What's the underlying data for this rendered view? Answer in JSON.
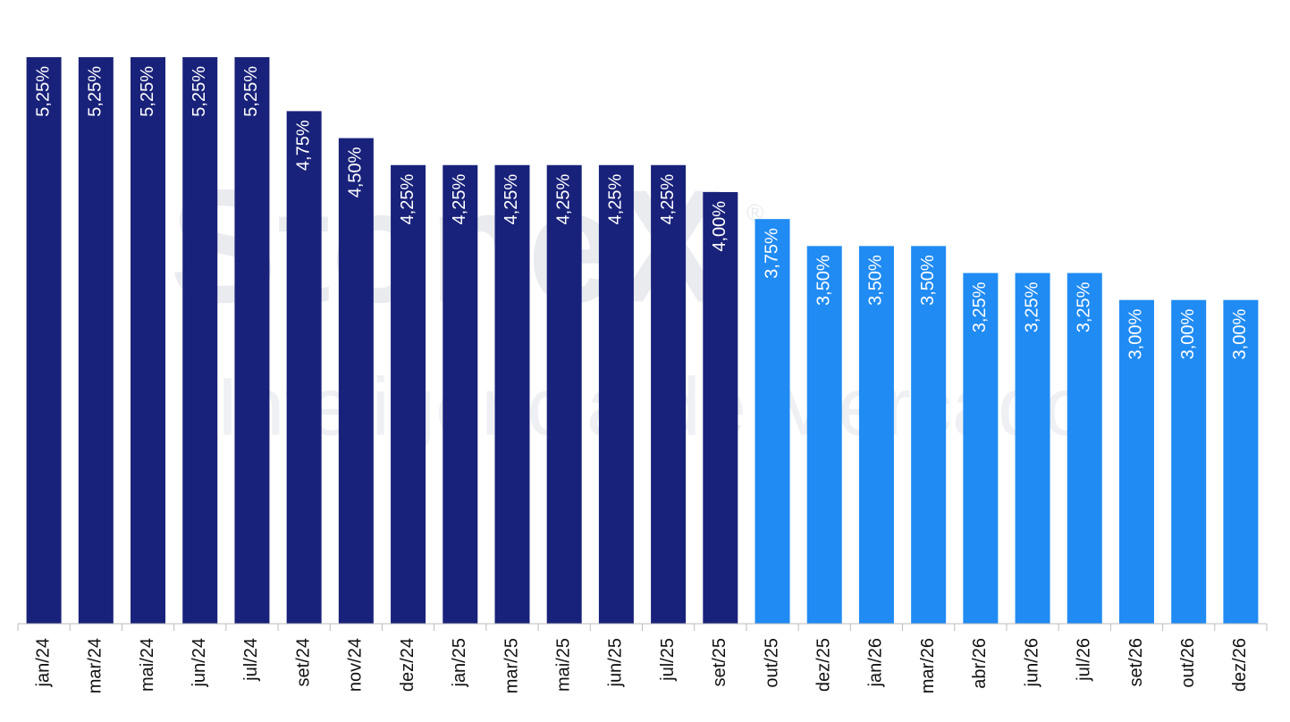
{
  "chart_data": {
    "type": "bar",
    "watermark": [
      "StoneX",
      "®",
      "Inteligência de Mercado"
    ],
    "categories": [
      "jan/24",
      "mar/24",
      "mai/24",
      "jun/24",
      "jul/24",
      "set/24",
      "nov/24",
      "dez/24",
      "jan/25",
      "mar/25",
      "mai/25",
      "jun/25",
      "jul/25",
      "set/25",
      "out/25",
      "dez/25",
      "jan/26",
      "mar/26",
      "abr/26",
      "jun/26",
      "jul/26",
      "set/26",
      "out/26",
      "dez/26"
    ],
    "values": [
      5.25,
      5.25,
      5.25,
      5.25,
      5.25,
      4.75,
      4.5,
      4.25,
      4.25,
      4.25,
      4.25,
      4.25,
      4.25,
      4.0,
      3.75,
      3.5,
      3.5,
      3.5,
      3.25,
      3.25,
      3.25,
      3.0,
      3.0,
      3.0
    ],
    "value_labels": [
      "5,25%",
      "5,25%",
      "5,25%",
      "5,25%",
      "5,25%",
      "4,75%",
      "4,50%",
      "4,25%",
      "4,25%",
      "4,25%",
      "4,25%",
      "4,25%",
      "4,25%",
      "4,00%",
      "3,75%",
      "3,50%",
      "3,50%",
      "3,50%",
      "3,25%",
      "3,25%",
      "3,25%",
      "3,00%",
      "3,00%",
      "3,00%"
    ],
    "colors": [
      "#19227a",
      "#19227a",
      "#19227a",
      "#19227a",
      "#19227a",
      "#19227a",
      "#19227a",
      "#19227a",
      "#19227a",
      "#19227a",
      "#19227a",
      "#19227a",
      "#19227a",
      "#19227a",
      "#208bf3",
      "#208bf3",
      "#208bf3",
      "#208bf3",
      "#208bf3",
      "#208bf3",
      "#208bf3",
      "#208bf3",
      "#208bf3",
      "#208bf3"
    ],
    "ylim": [
      0,
      5.25
    ]
  }
}
